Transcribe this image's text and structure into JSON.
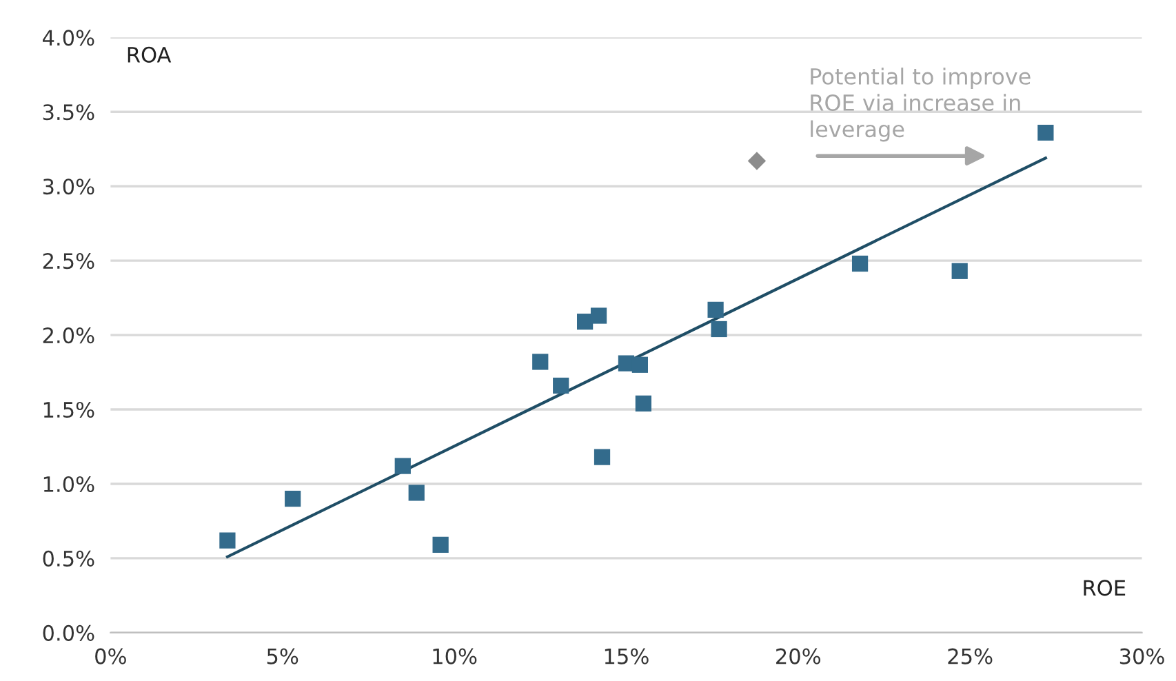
{
  "chart_data": {
    "type": "scatter",
    "xlabel": "ROE",
    "ylabel": "ROA",
    "xlim": [
      0,
      30
    ],
    "ylim": [
      0,
      4
    ],
    "xticks": [
      {
        "value": 0,
        "label": "0%"
      },
      {
        "value": 5,
        "label": "5%"
      },
      {
        "value": 10,
        "label": "10%"
      },
      {
        "value": 15,
        "label": "15%"
      },
      {
        "value": 20,
        "label": "20%"
      },
      {
        "value": 25,
        "label": "25%"
      },
      {
        "value": 30,
        "label": "30%"
      }
    ],
    "yticks": [
      {
        "value": 0,
        "label": "0.0%"
      },
      {
        "value": 0.5,
        "label": "0.5%"
      },
      {
        "value": 1,
        "label": "1.0%"
      },
      {
        "value": 1.5,
        "label": "1.5%"
      },
      {
        "value": 2,
        "label": "2.0%"
      },
      {
        "value": 2.5,
        "label": "2.5%"
      },
      {
        "value": 3,
        "label": "3.0%"
      },
      {
        "value": 3.5,
        "label": "3.5%"
      },
      {
        "value": 4,
        "label": "4.0%"
      }
    ],
    "grid": "y",
    "series": [
      {
        "type": "scatter",
        "marker": "square",
        "color": "#336b8c",
        "x": [
          3.4,
          5.3,
          8.5,
          8.9,
          9.6,
          12.5,
          13.1,
          13.8,
          14.2,
          14.3,
          15.0,
          15.4,
          15.5,
          17.6,
          17.7,
          21.8,
          24.7,
          27.2
        ],
        "values": [
          0.62,
          0.9,
          1.12,
          0.94,
          0.59,
          1.82,
          1.66,
          2.09,
          2.13,
          1.18,
          1.81,
          1.8,
          1.54,
          2.17,
          2.04,
          2.48,
          2.43,
          3.36
        ]
      },
      {
        "type": "scatter",
        "marker": "diamond",
        "color": "#8c8c8c",
        "x": [
          18.8
        ],
        "values": [
          3.17
        ]
      },
      {
        "type": "line",
        "marker": "none",
        "color": "#1f4e66",
        "x": [
          3.4,
          27.2
        ],
        "values": [
          0.51,
          3.19
        ]
      }
    ],
    "annotations": [
      "Potential to improve\nROE via increase in\nleverage"
    ]
  }
}
